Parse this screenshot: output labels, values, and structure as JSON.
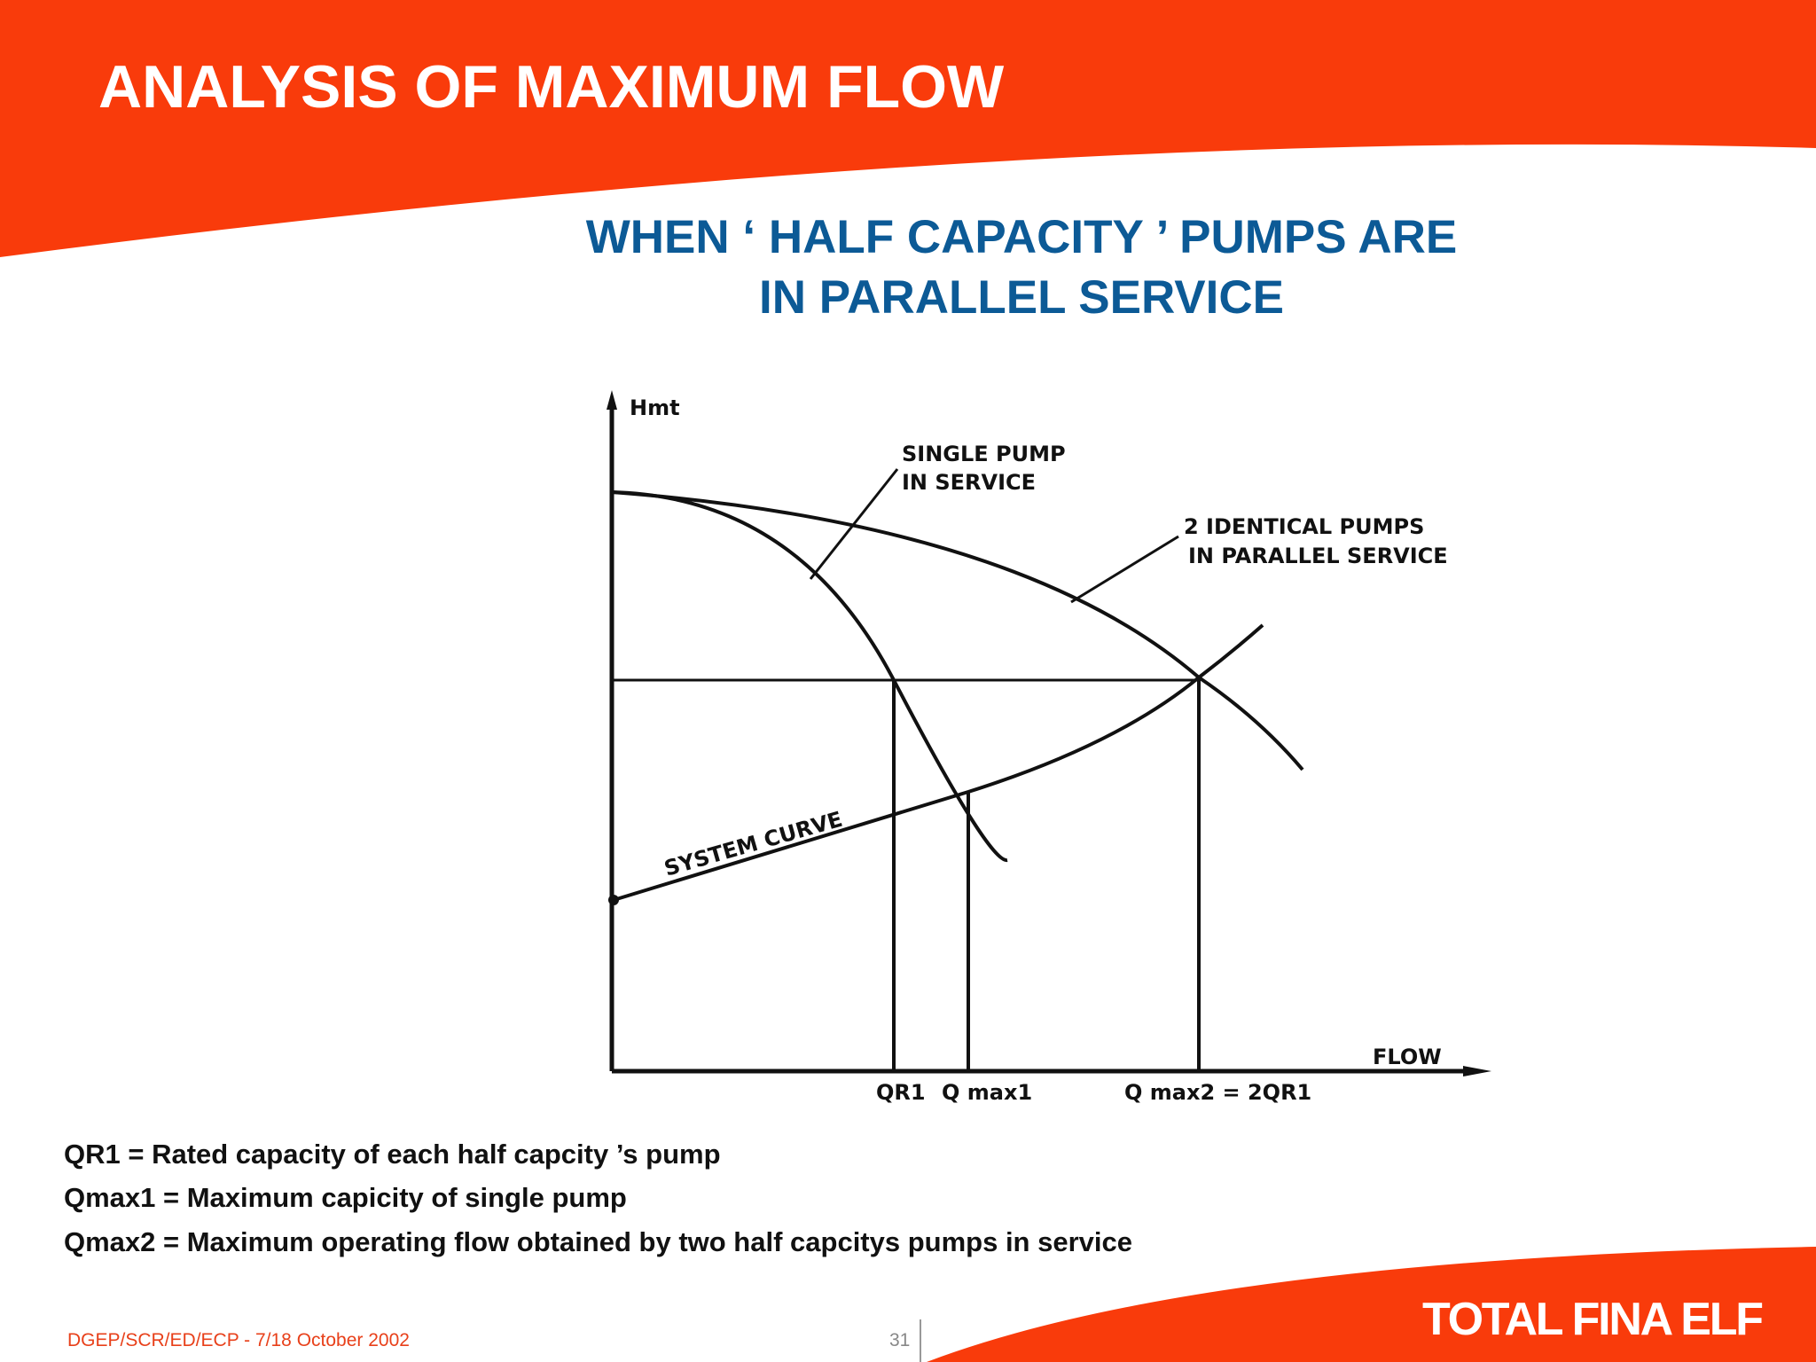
{
  "header": {
    "title": "ANALYSIS OF MAXIMUM FLOW"
  },
  "subtitle": [
    "WHEN ‘ HALF CAPACITY ’ PUMPS ARE",
    "IN PARALLEL SERVICE"
  ],
  "diagram": {
    "y_axis": "Hmt",
    "x_axis": "FLOW",
    "curves": {
      "single": [
        "SINGLE PUMP",
        "IN SERVICE"
      ],
      "parallel": [
        "2 IDENTICAL PUMPS",
        "IN PARALLEL SERVICE"
      ],
      "system": "SYSTEM CURVE"
    },
    "points": [
      "QR1",
      "Q max1",
      "Q max2 = 2QR1"
    ]
  },
  "definitions": [
    "QR1 = Rated capacity of each half capcity ’s pump",
    "Qmax1 = Maximum capicity of single pump",
    "Qmax2 = Maximum operating flow obtained by two half capcitys pumps in service"
  ],
  "footer": {
    "reference": "DGEP/SCR/ED/ECP -  7/18 October 2002",
    "page": "31",
    "logo": "TOTAL FINA ELF"
  }
}
